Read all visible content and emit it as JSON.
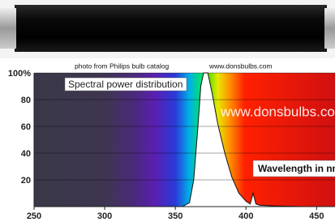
{
  "chart_data": {
    "type": "area",
    "caption": "photo from Philips bulb catalog",
    "source": "www.donsbulbs.com",
    "title": "Spectral power distribution",
    "watermark": "www.donsbulbs.com",
    "x_label": "Wavelength in nm",
    "x": [
      355,
      360,
      363,
      366,
      368,
      370,
      373,
      376,
      380,
      385,
      390,
      395,
      400,
      403,
      405,
      407,
      410,
      420,
      440,
      460
    ],
    "values": [
      0,
      3,
      20,
      60,
      90,
      100,
      100,
      85,
      62,
      40,
      22,
      10,
      4,
      2,
      10,
      2,
      1,
      0.5,
      0,
      0
    ],
    "color": "#ffffff",
    "xlim": [
      250,
      463
    ],
    "ylim": [
      0,
      100
    ],
    "xticks": [
      250,
      300,
      350,
      400,
      450
    ],
    "yticks": [
      20,
      40,
      60,
      80,
      {
        "value": 100,
        "label": "100%"
      }
    ],
    "grid": true
  }
}
